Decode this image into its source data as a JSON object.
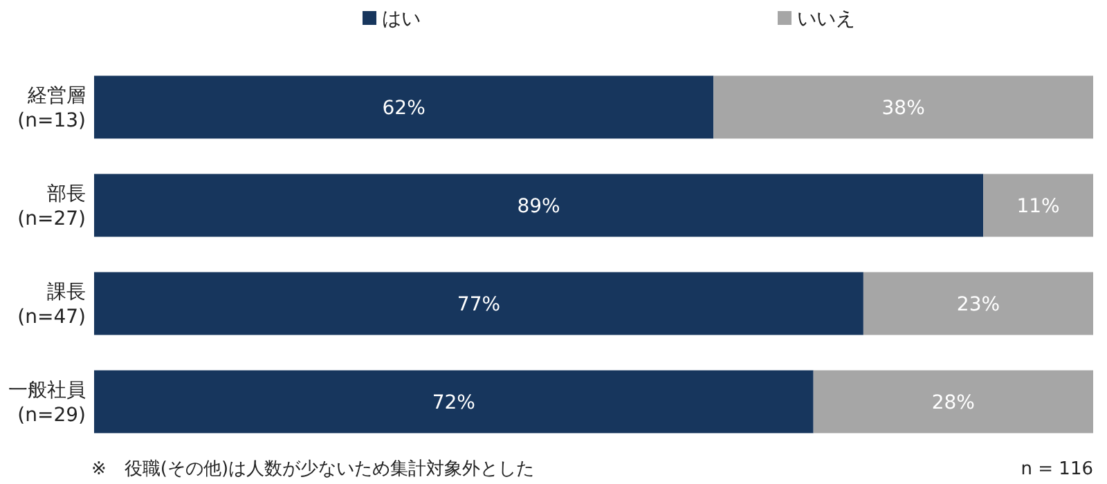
{
  "chart_data": {
    "type": "bar",
    "orientation": "horizontal",
    "stacked": true,
    "legend": "top",
    "categories": [
      "経営層\n(n=13)",
      "部長\n(n=27)",
      "課長\n(n=47)",
      "一般社員\n(n=29)"
    ],
    "series": [
      {
        "name": "はい",
        "color": "#17365d",
        "values": [
          62,
          89,
          77,
          72
        ],
        "value_labels": [
          "62%",
          "89%",
          "77%",
          "72%"
        ]
      },
      {
        "name": "いいえ",
        "color": "#a6a6a6",
        "values": [
          38,
          11,
          23,
          28
        ],
        "value_labels": [
          "38%",
          "11%",
          "23%",
          "28%"
        ]
      }
    ],
    "annotations": [
      "※　役職(その他)は人数が少ないため集計対象外とした",
      "n = 116"
    ]
  }
}
